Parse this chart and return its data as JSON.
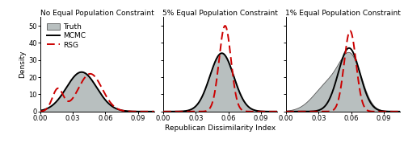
{
  "titles": [
    "No Equal Population Constraint",
    "5% Equal Population Constraint",
    "1% Equal Population Constraint"
  ],
  "xlabel": "Republican Dissimilarity Index",
  "ylabel": "Density",
  "xlim": [
    0.0,
    0.105
  ],
  "xticks": [
    0.0,
    0.03,
    0.06,
    0.09
  ],
  "xticklabels": [
    "0.00",
    "0.03",
    "0.06",
    "0.09"
  ],
  "panels": [
    {
      "truth_components": [
        {
          "mu": 0.038,
          "sigma": 0.014,
          "amp": 23.0
        }
      ],
      "mcmc_components": [
        {
          "mu": 0.038,
          "sigma": 0.014,
          "amp": 23.0
        }
      ],
      "rsg_components": [
        {
          "mu": 0.016,
          "sigma": 0.005,
          "amp": 13.0
        },
        {
          "mu": 0.046,
          "sigma": 0.011,
          "amp": 22.0
        }
      ],
      "ylim": [
        0,
        55
      ],
      "yticks": [
        0,
        10,
        20,
        30,
        40,
        50
      ]
    },
    {
      "truth_components": [
        {
          "mu": 0.054,
          "sigma": 0.011,
          "amp": 34.0
        }
      ],
      "mcmc_components": [
        {
          "mu": 0.054,
          "sigma": 0.011,
          "amp": 34.0
        }
      ],
      "rsg_components": [
        {
          "mu": 0.057,
          "sigma": 0.0055,
          "amp": 50.0
        }
      ],
      "ylim": [
        0,
        55
      ],
      "yticks": [
        0,
        10,
        20,
        30,
        40,
        50
      ]
    },
    {
      "truth_components": [
        {
          "mu": 0.04,
          "sigma": 0.014,
          "amp": 16.0
        },
        {
          "mu": 0.06,
          "sigma": 0.01,
          "amp": 28.0
        }
      ],
      "mcmc_components": [
        {
          "mu": 0.058,
          "sigma": 0.01,
          "amp": 37.0
        }
      ],
      "rsg_components": [
        {
          "mu": 0.059,
          "sigma": 0.0055,
          "amp": 47.0
        }
      ],
      "ylim": [
        0,
        55
      ],
      "yticks": [
        0,
        10,
        20,
        30,
        40,
        50
      ]
    }
  ],
  "truth_color": "#b8bfbf",
  "truth_edge_color": "#555555",
  "mcmc_color": "#000000",
  "rsg_color": "#cc0000",
  "background_color": "#ffffff",
  "title_fontsize": 6.5,
  "label_fontsize": 6.5,
  "tick_fontsize": 6.0,
  "legend_fontsize": 6.5
}
